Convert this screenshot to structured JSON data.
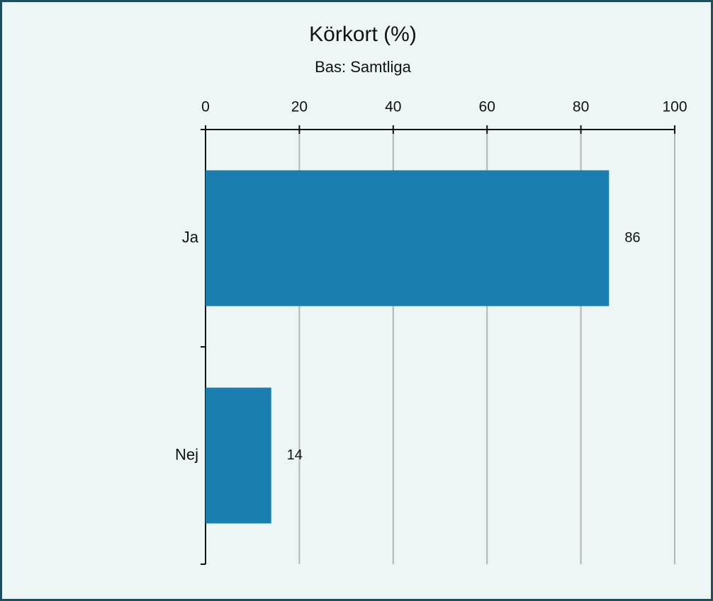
{
  "chart_data": {
    "type": "bar",
    "orientation": "horizontal",
    "title": "Körkort (%)",
    "subtitle": "Bas: Samtliga",
    "categories": [
      "Ja",
      "Nej"
    ],
    "values": [
      86,
      14
    ],
    "color": "#1a7fae",
    "xlim": [
      0,
      100
    ],
    "xticks": [
      0,
      20,
      40,
      60,
      80,
      100
    ],
    "grid": true
  }
}
